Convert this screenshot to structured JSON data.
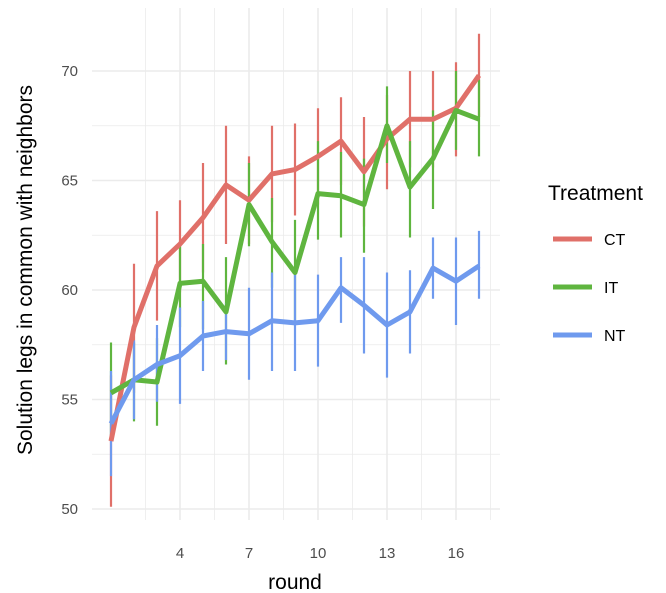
{
  "chart_data": {
    "type": "line",
    "title": "",
    "xlabel": "round",
    "ylabel": "Solution legs in common with neighbors",
    "xlim": [
      1,
      17
    ],
    "ylim": [
      50,
      72
    ],
    "x_ticks": [
      4,
      7,
      10,
      13,
      16
    ],
    "y_ticks": [
      50,
      55,
      60,
      65,
      70
    ],
    "grid": true,
    "legend": {
      "title": "Treatment",
      "position": "right"
    },
    "x": [
      1,
      2,
      3,
      4,
      5,
      6,
      7,
      8,
      9,
      10,
      11,
      12,
      13,
      14,
      15,
      16,
      17
    ],
    "series": [
      {
        "name": "CT",
        "color": "#e07069",
        "values": [
          53.1,
          58.3,
          61.1,
          62.1,
          63.3,
          64.8,
          64.1,
          65.3,
          65.5,
          66.1,
          66.8,
          65.4,
          66.9,
          67.8,
          67.8,
          68.3,
          69.8
        ],
        "lower": [
          50.1,
          55.3,
          58.6,
          59.9,
          60.8,
          62.1,
          62.1,
          63.1,
          63.4,
          63.9,
          64.8,
          62.9,
          64.6,
          65.6,
          65.6,
          66.1,
          67.9
        ],
        "upper": [
          56.1,
          61.2,
          63.6,
          64.1,
          65.8,
          67.5,
          66.1,
          67.5,
          67.6,
          68.3,
          68.8,
          67.9,
          68.9,
          70.0,
          70.0,
          70.4,
          71.7
        ]
      },
      {
        "name": "IT",
        "color": "#5fb53f",
        "values": [
          55.3,
          55.9,
          55.8,
          60.3,
          60.4,
          59.0,
          63.9,
          62.2,
          60.8,
          64.4,
          64.3,
          63.9,
          67.5,
          64.7,
          66.0,
          68.2,
          67.8
        ],
        "lower": [
          53.1,
          54.0,
          53.8,
          58.3,
          58.2,
          56.6,
          62.0,
          60.1,
          58.4,
          62.3,
          62.4,
          61.7,
          65.8,
          62.4,
          63.7,
          66.4,
          66.1
        ],
        "upper": [
          57.6,
          57.6,
          57.8,
          62.2,
          62.1,
          61.5,
          65.8,
          64.2,
          63.2,
          66.8,
          66.3,
          66.0,
          69.3,
          66.8,
          68.2,
          70.0,
          69.6
        ]
      },
      {
        "name": "NT",
        "color": "#6f9aee",
        "values": [
          53.9,
          55.9,
          56.6,
          57.0,
          57.9,
          58.1,
          58.0,
          58.6,
          58.5,
          58.6,
          60.1,
          59.3,
          58.4,
          59.0,
          61.0,
          60.4,
          61.1
        ],
        "lower": [
          51.5,
          54.1,
          54.9,
          54.8,
          56.3,
          56.8,
          55.9,
          56.3,
          56.3,
          56.5,
          58.5,
          57.1,
          56.0,
          57.1,
          59.6,
          58.4,
          59.6
        ],
        "upper": [
          56.3,
          57.7,
          58.4,
          59.2,
          59.5,
          59.4,
          60.1,
          60.8,
          60.7,
          60.7,
          61.5,
          61.5,
          60.8,
          60.9,
          62.4,
          62.4,
          62.7
        ]
      }
    ]
  }
}
